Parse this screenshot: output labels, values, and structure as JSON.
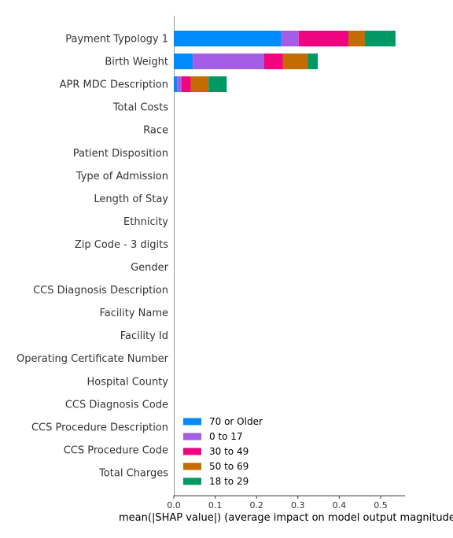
{
  "chart_data": {
    "type": "bar",
    "orientation": "horizontal",
    "stacked": true,
    "xlabel": "mean(|SHAP value|) (average impact on model output magnitude)",
    "xlim": [
      0,
      0.56
    ],
    "xticks": [
      "0.0",
      "0.1",
      "0.2",
      "0.3",
      "0.4",
      "0.5"
    ],
    "xtick_values": [
      0,
      0.1,
      0.2,
      0.3,
      0.4,
      0.5
    ],
    "grid": false,
    "legend_position": "bottom-left",
    "categories": [
      "Payment Typology 1",
      "Birth Weight",
      "APR MDC Description",
      "Total Costs",
      "Race",
      "Patient Disposition",
      "Type of Admission",
      "Length of Stay",
      "Ethnicity",
      "Zip Code - 3 digits",
      "Gender",
      "CCS Diagnosis Description",
      "Facility Name",
      "Facility Id",
      "Operating Certificate Number",
      "Hospital County",
      "CCS Diagnosis Code",
      "CCS Procedure Description",
      "CCS Procedure Code",
      "Total Charges"
    ],
    "series": [
      {
        "name": "70 or Older",
        "color": "#008BFB",
        "values": [
          0.26,
          0.046,
          0.008,
          0,
          0,
          0,
          0,
          0,
          0,
          0,
          0,
          0,
          0,
          0,
          0,
          0,
          0,
          0,
          0,
          0
        ]
      },
      {
        "name": "0 to 17",
        "color": "#A45EE5",
        "values": [
          0.042,
          0.172,
          0.011,
          0,
          0,
          0,
          0,
          0,
          0,
          0,
          0,
          0,
          0,
          0,
          0,
          0,
          0,
          0,
          0,
          0
        ]
      },
      {
        "name": "30 to 49",
        "color": "#F0047F",
        "values": [
          0.12,
          0.046,
          0.022,
          0,
          0,
          0,
          0,
          0,
          0,
          0,
          0,
          0,
          0,
          0,
          0,
          0,
          0,
          0,
          0,
          0
        ]
      },
      {
        "name": "50 to 69",
        "color": "#C36C05",
        "values": [
          0.04,
          0.06,
          0.043,
          0,
          0,
          0,
          0,
          0,
          0,
          0,
          0,
          0,
          0,
          0,
          0,
          0,
          0,
          0,
          0,
          0
        ]
      },
      {
        "name": "18 to 29",
        "color": "#009966",
        "values": [
          0.074,
          0.024,
          0.044,
          0,
          0,
          0,
          0,
          0,
          0,
          0,
          0,
          0,
          0,
          0,
          0,
          0,
          0,
          0,
          0,
          0
        ]
      }
    ]
  }
}
